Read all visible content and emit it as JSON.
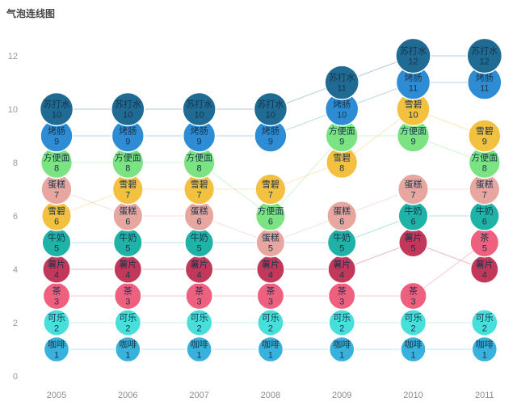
{
  "page": {
    "title": "气泡连线图"
  },
  "chart_data": {
    "type": "bubble-line",
    "title": "气泡连线图",
    "x": [
      2005,
      2006,
      2007,
      2008,
      2009,
      2010,
      2011
    ],
    "series": [
      {
        "name": "苏打水",
        "color": "#1f6b93",
        "values": [
          10,
          10,
          10,
          10,
          11,
          12,
          12
        ]
      },
      {
        "name": "烤肠",
        "color": "#2d8cd3",
        "values": [
          9,
          9,
          9,
          9,
          10,
          11,
          11
        ]
      },
      {
        "name": "方便面",
        "color": "#7be382",
        "values": [
          8,
          8,
          8,
          6,
          9,
          9,
          8
        ]
      },
      {
        "name": "雪碧",
        "color": "#f3c13f",
        "values": [
          6,
          7,
          7,
          7,
          8,
          10,
          9
        ]
      },
      {
        "name": "蛋糕",
        "color": "#e7a69f",
        "values": [
          7,
          6,
          6,
          5,
          6,
          7,
          7
        ]
      },
      {
        "name": "牛奶",
        "color": "#1fb2a6",
        "values": [
          5,
          5,
          5,
          null,
          5,
          6,
          6
        ]
      },
      {
        "name": "薯片",
        "color": "#c2385a",
        "values": [
          4,
          4,
          4,
          4,
          4,
          5,
          4
        ]
      },
      {
        "name": "茶",
        "color": "#ef5f7e",
        "values": [
          3,
          3,
          3,
          3,
          3,
          3,
          5
        ]
      },
      {
        "name": "可乐",
        "color": "#46dfda",
        "values": [
          2,
          2,
          2,
          2,
          2,
          2,
          2
        ]
      },
      {
        "name": "咖啡",
        "color": "#38b2dd",
        "values": [
          1,
          1,
          1,
          1,
          1,
          1,
          1
        ]
      }
    ],
    "yticks": [
      0,
      2,
      4,
      6,
      8,
      10,
      12
    ],
    "ylim": [
      0,
      13
    ],
    "grid": false,
    "legend": "none",
    "axis_label_color": "#999999",
    "x_label_color": "#8c8c8c",
    "bubble_text_color": "#17344c",
    "line_opacity": 0.35,
    "background": "#ffffff"
  }
}
